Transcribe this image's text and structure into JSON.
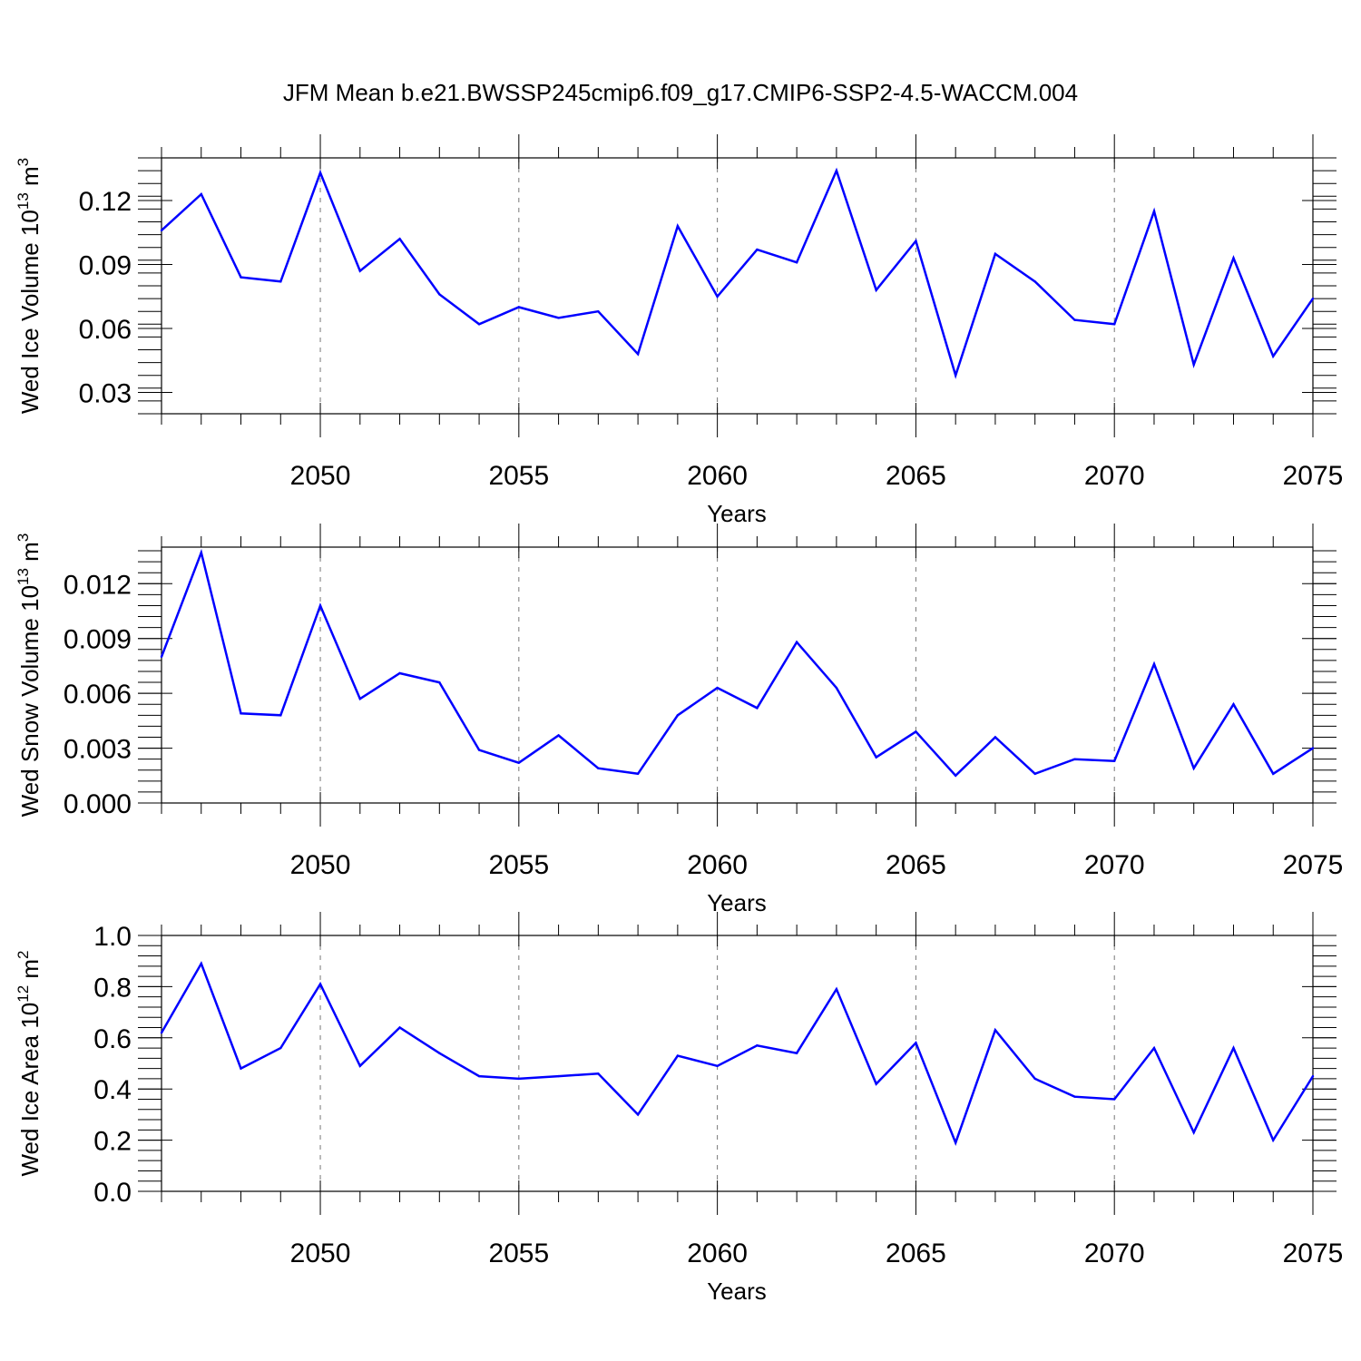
{
  "title": "JFM Mean b.e21.BWSSP245cmip6.f09_g17.CMIP6-SSP2-4.5-WACCM.004",
  "colors": {
    "line": "#0000ff",
    "axis": "#000000",
    "grid": "#777777"
  },
  "chart_data": [
    {
      "type": "line",
      "ylabel": "Wed Ice Volume 10",
      "ylabel_exp": "13",
      "ylabel_unit": " m",
      "ylabel_unit_exp": "3",
      "xlabel": "Years",
      "xlim": [
        2046,
        2075
      ],
      "ylim": [
        0.02,
        0.14
      ],
      "yticks": [
        0.03,
        0.06,
        0.09,
        0.12
      ],
      "ytick_labels": [
        "0.03",
        "0.06",
        "0.09",
        "0.12"
      ],
      "xticks": [
        2050,
        2055,
        2060,
        2065,
        2070,
        2075
      ],
      "xtick_labels": [
        "2050",
        "2055",
        "2060",
        "2065",
        "2070",
        "2075"
      ],
      "grid": "x-dashed at major ticks",
      "x": [
        2046,
        2047,
        2048,
        2049,
        2050,
        2051,
        2052,
        2053,
        2054,
        2055,
        2056,
        2057,
        2058,
        2059,
        2060,
        2061,
        2062,
        2063,
        2064,
        2065,
        2066,
        2067,
        2068,
        2069,
        2070,
        2071,
        2072,
        2073,
        2074,
        2075
      ],
      "series": [
        {
          "values": [
            0.106,
            0.123,
            0.084,
            0.082,
            0.133,
            0.087,
            0.102,
            0.076,
            0.062,
            0.07,
            0.065,
            0.068,
            0.048,
            0.108,
            0.075,
            0.097,
            0.091,
            0.134,
            0.078,
            0.101,
            0.038,
            0.095,
            0.082,
            0.064,
            0.062,
            0.115,
            0.043,
            0.093,
            0.047,
            0.074
          ]
        }
      ]
    },
    {
      "type": "line",
      "ylabel": "Wed Snow Volume 10",
      "ylabel_exp": "13",
      "ylabel_unit": " m",
      "ylabel_unit_exp": "3",
      "xlabel": "Years",
      "xlim": [
        2046,
        2075
      ],
      "ylim": [
        0.0,
        0.014
      ],
      "yticks": [
        0.0,
        0.003,
        0.006,
        0.009,
        0.012
      ],
      "ytick_labels": [
        "0.000",
        "0.003",
        "0.006",
        "0.009",
        "0.012"
      ],
      "xticks": [
        2050,
        2055,
        2060,
        2065,
        2070,
        2075
      ],
      "xtick_labels": [
        "2050",
        "2055",
        "2060",
        "2065",
        "2070",
        "2075"
      ],
      "grid": "x-dashed at major ticks",
      "x": [
        2046,
        2047,
        2048,
        2049,
        2050,
        2051,
        2052,
        2053,
        2054,
        2055,
        2056,
        2057,
        2058,
        2059,
        2060,
        2061,
        2062,
        2063,
        2064,
        2065,
        2066,
        2067,
        2068,
        2069,
        2070,
        2071,
        2072,
        2073,
        2074,
        2075
      ],
      "series": [
        {
          "values": [
            0.008,
            0.0137,
            0.0049,
            0.0048,
            0.0108,
            0.0057,
            0.0071,
            0.0066,
            0.0029,
            0.0022,
            0.0037,
            0.0019,
            0.0016,
            0.0048,
            0.0063,
            0.0052,
            0.0088,
            0.0063,
            0.0025,
            0.0039,
            0.0015,
            0.0036,
            0.0016,
            0.0024,
            0.0023,
            0.0076,
            0.0019,
            0.0054,
            0.0016,
            0.003
          ]
        }
      ]
    },
    {
      "type": "line",
      "ylabel": "Wed Ice Area 10",
      "ylabel_exp": "12",
      "ylabel_unit": " m",
      "ylabel_unit_exp": "2",
      "xlabel": "Years",
      "xlim": [
        2046,
        2075
      ],
      "ylim": [
        0.0,
        1.0
      ],
      "yticks": [
        0.0,
        0.2,
        0.4,
        0.6,
        0.8,
        1.0
      ],
      "ytick_labels": [
        "0.0",
        "0.2",
        "0.4",
        "0.6",
        "0.8",
        "1.0"
      ],
      "xticks": [
        2050,
        2055,
        2060,
        2065,
        2070,
        2075
      ],
      "xtick_labels": [
        "2050",
        "2055",
        "2060",
        "2065",
        "2070",
        "2075"
      ],
      "grid": "x-dashed at major ticks",
      "x": [
        2046,
        2047,
        2048,
        2049,
        2050,
        2051,
        2052,
        2053,
        2054,
        2055,
        2056,
        2057,
        2058,
        2059,
        2060,
        2061,
        2062,
        2063,
        2064,
        2065,
        2066,
        2067,
        2068,
        2069,
        2070,
        2071,
        2072,
        2073,
        2074,
        2075
      ],
      "series": [
        {
          "values": [
            0.62,
            0.89,
            0.48,
            0.56,
            0.81,
            0.49,
            0.64,
            0.54,
            0.45,
            0.44,
            0.45,
            0.46,
            0.3,
            0.53,
            0.49,
            0.57,
            0.54,
            0.79,
            0.42,
            0.58,
            0.19,
            0.63,
            0.44,
            0.37,
            0.36,
            0.56,
            0.23,
            0.56,
            0.2,
            0.45
          ]
        }
      ]
    }
  ]
}
